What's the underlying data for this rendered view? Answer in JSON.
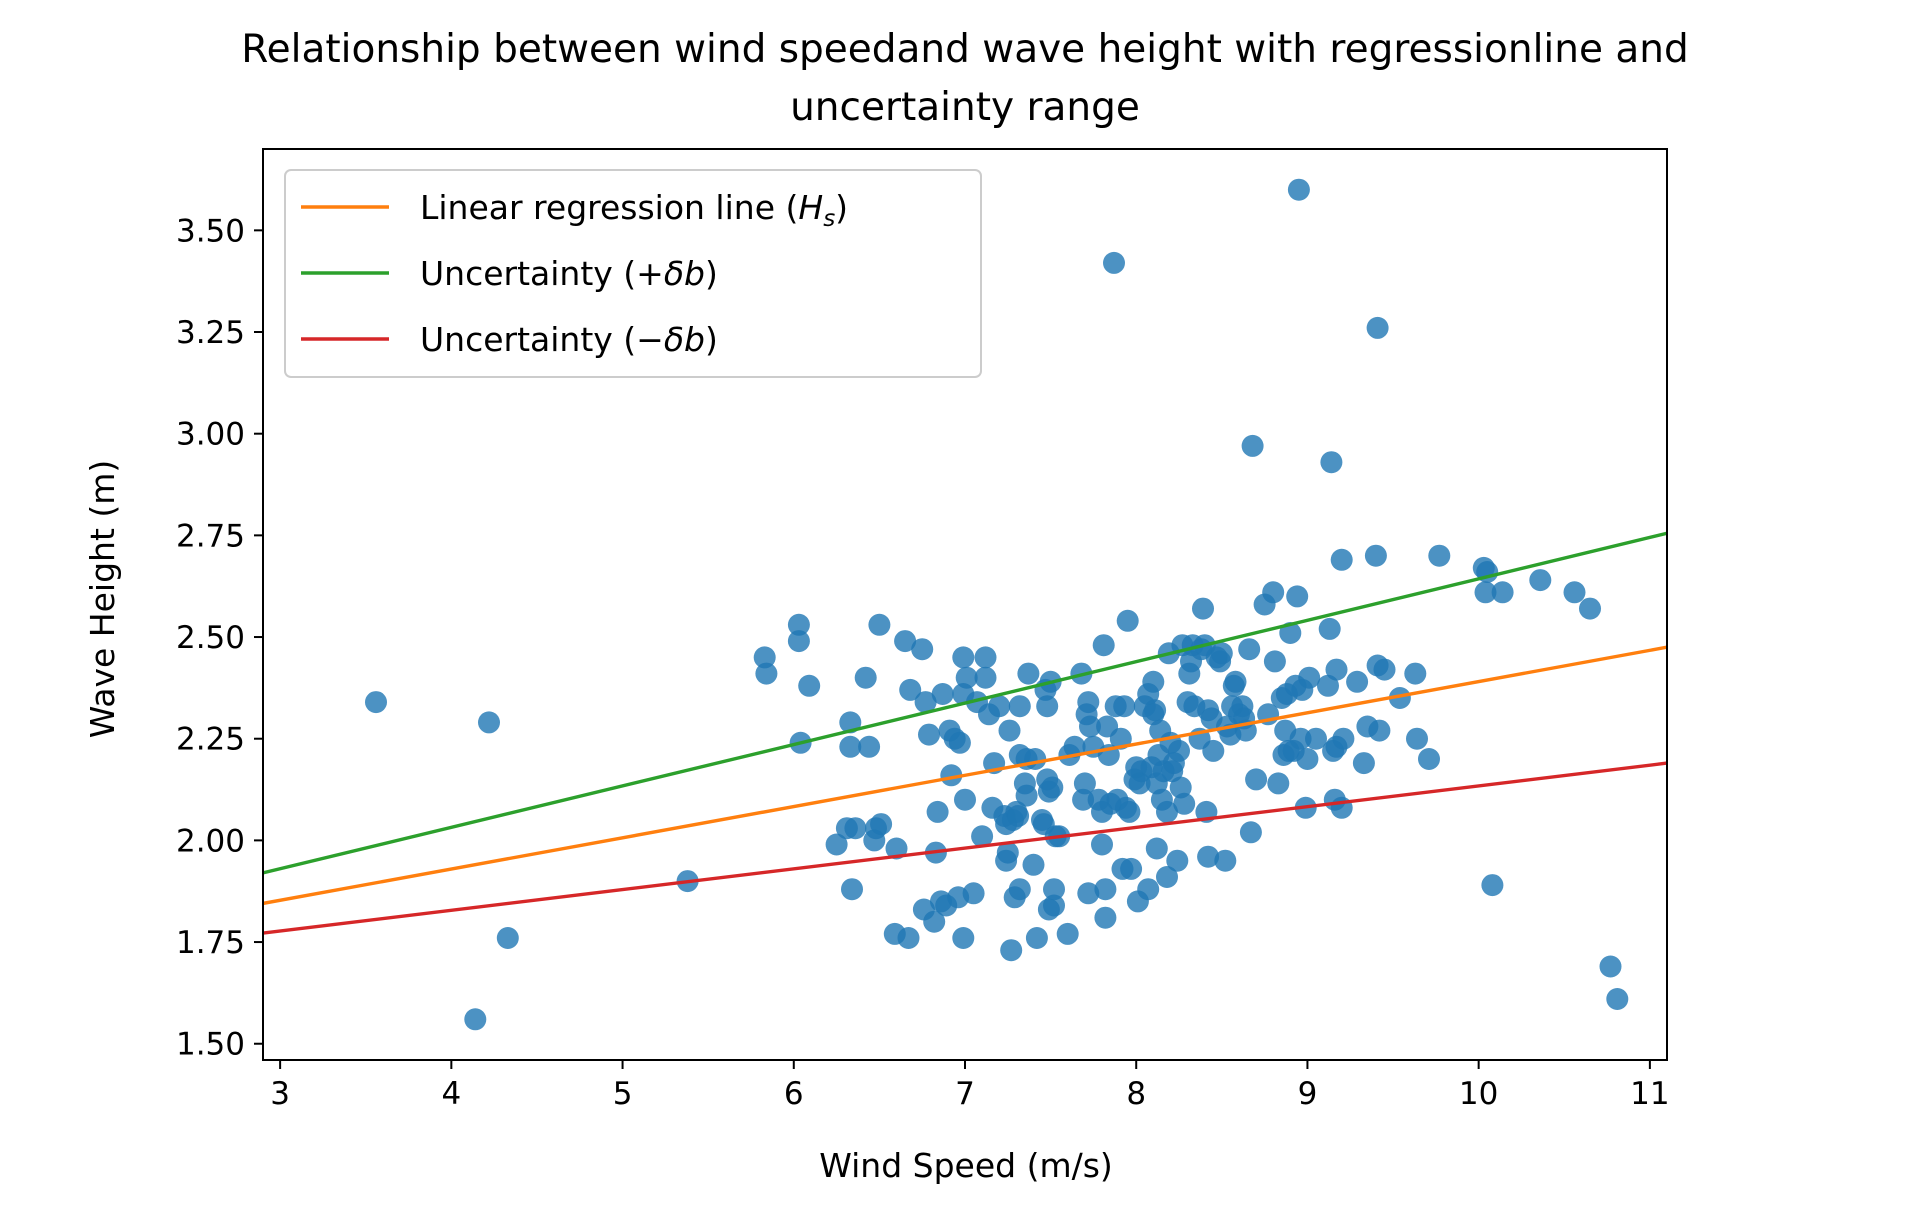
{
  "chart_data": {
    "type": "scatter",
    "title_lines": [
      "Relationship between wind speedand wave height with regressionline and",
      "uncertainty range"
    ],
    "xlabel": "Wind Speed (m/s)",
    "ylabel": "Wave Height (m)",
    "xlim": [
      2.9,
      11.1
    ],
    "ylim": [
      1.46,
      3.7
    ],
    "xticks": [
      3,
      4,
      5,
      6,
      7,
      8,
      9,
      10,
      11
    ],
    "xtick_labels": [
      "3",
      "4",
      "5",
      "6",
      "7",
      "8",
      "9",
      "10",
      "11"
    ],
    "yticks": [
      1.5,
      1.75,
      2.0,
      2.25,
      2.5,
      2.75,
      3.0,
      3.25,
      3.5
    ],
    "ytick_labels": [
      "1.50",
      "1.75",
      "2.00",
      "2.25",
      "2.50",
      "2.75",
      "3.00",
      "3.25",
      "3.50"
    ],
    "grid": false,
    "legend_position": "top-left",
    "scatter_color": "#1f77b4",
    "lines": [
      {
        "name": "Linear regression line ($H_s$)",
        "legend_main": "Linear regression line (",
        "legend_italic": "H",
        "legend_sub": "s",
        "legend_tail": ")",
        "color": "#ff7f0e",
        "x": [
          2.9,
          11.1
        ],
        "y": [
          1.845,
          2.475
        ]
      },
      {
        "name": "Uncertainty ($+\\delta b$)",
        "legend_main": "Uncertainty (+",
        "legend_italic": "δb",
        "legend_sub": "",
        "legend_tail": ")",
        "color": "#2ca02c",
        "x": [
          2.9,
          11.1
        ],
        "y": [
          1.92,
          2.755
        ]
      },
      {
        "name": "Uncertainty ($-\\delta b$)",
        "legend_main": "Uncertainty (−",
        "legend_italic": "δb",
        "legend_sub": "",
        "legend_tail": ")",
        "color": "#d62728",
        "x": [
          2.9,
          11.1
        ],
        "y": [
          1.772,
          2.19
        ]
      }
    ],
    "points": [
      [
        3.56,
        2.34
      ],
      [
        4.14,
        1.56
      ],
      [
        4.22,
        2.29
      ],
      [
        4.33,
        1.76
      ],
      [
        5.38,
        1.9
      ],
      [
        5.83,
        2.45
      ],
      [
        5.84,
        2.41
      ],
      [
        6.03,
        2.53
      ],
      [
        6.03,
        2.49
      ],
      [
        6.04,
        2.24
      ],
      [
        6.09,
        2.38
      ],
      [
        6.25,
        1.99
      ],
      [
        6.31,
        2.03
      ],
      [
        6.33,
        2.29
      ],
      [
        6.33,
        2.23
      ],
      [
        6.34,
        1.88
      ],
      [
        6.36,
        2.03
      ],
      [
        6.42,
        2.4
      ],
      [
        6.44,
        2.23
      ],
      [
        6.47,
        2.0
      ],
      [
        6.48,
        2.03
      ],
      [
        6.5,
        2.53
      ],
      [
        6.51,
        2.04
      ],
      [
        6.59,
        1.77
      ],
      [
        6.6,
        1.98
      ],
      [
        6.65,
        2.49
      ],
      [
        6.67,
        1.76
      ],
      [
        6.68,
        2.37
      ],
      [
        6.75,
        2.47
      ],
      [
        6.76,
        1.83
      ],
      [
        6.77,
        2.34
      ],
      [
        6.79,
        2.26
      ],
      [
        6.82,
        1.8
      ],
      [
        6.83,
        1.97
      ],
      [
        6.84,
        2.07
      ],
      [
        6.86,
        1.85
      ],
      [
        6.87,
        2.36
      ],
      [
        6.89,
        1.84
      ],
      [
        6.91,
        2.27
      ],
      [
        6.92,
        2.16
      ],
      [
        6.94,
        2.25
      ],
      [
        6.96,
        1.86
      ],
      [
        6.97,
        2.24
      ],
      [
        6.99,
        2.36
      ],
      [
        6.99,
        2.45
      ],
      [
        6.99,
        1.76
      ],
      [
        7.0,
        2.1
      ],
      [
        7.01,
        2.4
      ],
      [
        7.05,
        1.87
      ],
      [
        7.07,
        2.34
      ],
      [
        7.1,
        2.01
      ],
      [
        7.12,
        2.45
      ],
      [
        7.12,
        2.4
      ],
      [
        7.14,
        2.31
      ],
      [
        7.16,
        2.08
      ],
      [
        7.17,
        2.19
      ],
      [
        7.2,
        2.33
      ],
      [
        7.23,
        2.06
      ],
      [
        7.24,
        1.95
      ],
      [
        7.24,
        2.04
      ],
      [
        7.25,
        1.97
      ],
      [
        7.26,
        2.27
      ],
      [
        7.27,
        1.73
      ],
      [
        7.28,
        2.05
      ],
      [
        7.29,
        1.86
      ],
      [
        7.3,
        2.07
      ],
      [
        7.31,
        2.06
      ],
      [
        7.32,
        1.88
      ],
      [
        7.32,
        2.21
      ],
      [
        7.32,
        2.33
      ],
      [
        7.35,
        2.14
      ],
      [
        7.36,
        2.2
      ],
      [
        7.36,
        2.11
      ],
      [
        7.37,
        2.41
      ],
      [
        7.4,
        1.94
      ],
      [
        7.41,
        2.2
      ],
      [
        7.42,
        1.76
      ],
      [
        7.45,
        2.05
      ],
      [
        7.46,
        2.04
      ],
      [
        7.47,
        2.37
      ],
      [
        7.48,
        2.33
      ],
      [
        7.48,
        2.15
      ],
      [
        7.49,
        1.83
      ],
      [
        7.49,
        2.12
      ],
      [
        7.5,
        2.39
      ],
      [
        7.51,
        2.13
      ],
      [
        7.52,
        1.88
      ],
      [
        7.52,
        1.84
      ],
      [
        7.53,
        2.01
      ],
      [
        7.55,
        2.01
      ],
      [
        7.6,
        1.77
      ],
      [
        7.61,
        2.21
      ],
      [
        7.64,
        2.23
      ],
      [
        7.68,
        2.41
      ],
      [
        7.69,
        2.1
      ],
      [
        7.7,
        2.14
      ],
      [
        7.71,
        2.31
      ],
      [
        7.72,
        2.34
      ],
      [
        7.72,
        1.87
      ],
      [
        7.73,
        2.28
      ],
      [
        7.75,
        2.23
      ],
      [
        7.78,
        2.1
      ],
      [
        7.8,
        2.07
      ],
      [
        7.8,
        1.99
      ],
      [
        7.81,
        2.48
      ],
      [
        7.82,
        1.81
      ],
      [
        7.82,
        1.88
      ],
      [
        7.83,
        2.28
      ],
      [
        7.84,
        2.21
      ],
      [
        7.85,
        2.09
      ],
      [
        7.87,
        3.42
      ],
      [
        7.88,
        2.33
      ],
      [
        7.89,
        2.1
      ],
      [
        7.91,
        2.25
      ],
      [
        7.92,
        1.93
      ],
      [
        7.93,
        2.33
      ],
      [
        7.94,
        2.08
      ],
      [
        7.95,
        2.54
      ],
      [
        7.96,
        2.07
      ],
      [
        7.97,
        1.93
      ],
      [
        7.99,
        2.15
      ],
      [
        8.0,
        2.18
      ],
      [
        8.01,
        1.85
      ],
      [
        8.02,
        2.14
      ],
      [
        8.03,
        2.17
      ],
      [
        8.05,
        2.33
      ],
      [
        8.07,
        1.88
      ],
      [
        8.07,
        2.36
      ],
      [
        8.09,
        2.18
      ],
      [
        8.1,
        2.39
      ],
      [
        8.1,
        2.31
      ],
      [
        8.11,
        2.32
      ],
      [
        8.12,
        2.14
      ],
      [
        8.12,
        1.98
      ],
      [
        8.13,
        2.21
      ],
      [
        8.14,
        2.27
      ],
      [
        8.15,
        2.1
      ],
      [
        8.16,
        2.17
      ],
      [
        8.18,
        1.91
      ],
      [
        8.18,
        2.07
      ],
      [
        8.19,
        2.46
      ],
      [
        8.2,
        2.24
      ],
      [
        8.21,
        2.17
      ],
      [
        8.22,
        2.19
      ],
      [
        8.24,
        1.95
      ],
      [
        8.25,
        2.22
      ],
      [
        8.26,
        2.13
      ],
      [
        8.27,
        2.48
      ],
      [
        8.28,
        2.09
      ],
      [
        8.3,
        2.34
      ],
      [
        8.31,
        2.41
      ],
      [
        8.32,
        2.44
      ],
      [
        8.33,
        2.48
      ],
      [
        8.34,
        2.33
      ],
      [
        8.37,
        2.25
      ],
      [
        8.38,
        2.47
      ],
      [
        8.39,
        2.57
      ],
      [
        8.4,
        2.48
      ],
      [
        8.41,
        2.07
      ],
      [
        8.42,
        2.32
      ],
      [
        8.42,
        1.96
      ],
      [
        8.44,
        2.3
      ],
      [
        8.45,
        2.22
      ],
      [
        8.47,
        2.45
      ],
      [
        8.49,
        2.44
      ],
      [
        8.5,
        2.46
      ],
      [
        8.52,
        1.95
      ],
      [
        8.53,
        2.28
      ],
      [
        8.55,
        2.26
      ],
      [
        8.56,
        2.33
      ],
      [
        8.57,
        2.38
      ],
      [
        8.58,
        2.39
      ],
      [
        8.6,
        2.31
      ],
      [
        8.62,
        2.33
      ],
      [
        8.63,
        2.3
      ],
      [
        8.64,
        2.27
      ],
      [
        8.66,
        2.47
      ],
      [
        8.67,
        2.02
      ],
      [
        8.68,
        2.97
      ],
      [
        8.7,
        2.15
      ],
      [
        8.75,
        2.58
      ],
      [
        8.77,
        2.31
      ],
      [
        8.8,
        2.61
      ],
      [
        8.81,
        2.44
      ],
      [
        8.83,
        2.14
      ],
      [
        8.85,
        2.35
      ],
      [
        8.86,
        2.21
      ],
      [
        8.87,
        2.27
      ],
      [
        8.88,
        2.36
      ],
      [
        8.89,
        2.22
      ],
      [
        8.9,
        2.51
      ],
      [
        8.92,
        2.22
      ],
      [
        8.93,
        2.38
      ],
      [
        8.94,
        2.6
      ],
      [
        8.95,
        3.6
      ],
      [
        8.96,
        2.25
      ],
      [
        8.97,
        2.37
      ],
      [
        8.99,
        2.08
      ],
      [
        9.0,
        2.2
      ],
      [
        9.01,
        2.4
      ],
      [
        9.05,
        2.25
      ],
      [
        9.12,
        2.38
      ],
      [
        9.13,
        2.52
      ],
      [
        9.14,
        2.93
      ],
      [
        9.15,
        2.22
      ],
      [
        9.16,
        2.1
      ],
      [
        9.17,
        2.23
      ],
      [
        9.17,
        2.42
      ],
      [
        9.2,
        2.69
      ],
      [
        9.2,
        2.08
      ],
      [
        9.21,
        2.25
      ],
      [
        9.29,
        2.39
      ],
      [
        9.33,
        2.19
      ],
      [
        9.35,
        2.28
      ],
      [
        9.4,
        2.7
      ],
      [
        9.41,
        2.43
      ],
      [
        9.41,
        3.26
      ],
      [
        9.42,
        2.27
      ],
      [
        9.45,
        2.42
      ],
      [
        9.54,
        2.35
      ],
      [
        9.63,
        2.41
      ],
      [
        9.64,
        2.25
      ],
      [
        9.71,
        2.2
      ],
      [
        9.77,
        2.7
      ],
      [
        10.03,
        2.67
      ],
      [
        10.04,
        2.61
      ],
      [
        10.05,
        2.66
      ],
      [
        10.08,
        1.89
      ],
      [
        10.14,
        2.61
      ],
      [
        10.36,
        2.64
      ],
      [
        10.56,
        2.61
      ],
      [
        10.65,
        2.57
      ],
      [
        10.77,
        1.69
      ],
      [
        10.81,
        1.61
      ]
    ]
  }
}
